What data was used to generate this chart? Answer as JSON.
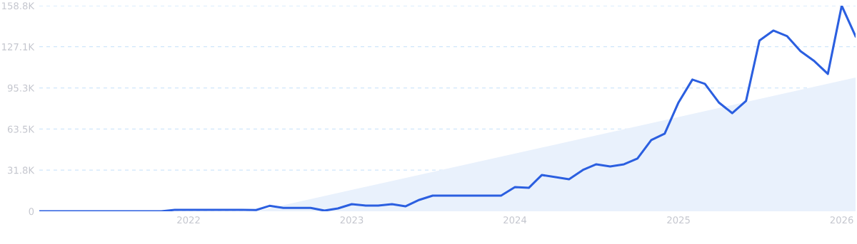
{
  "chart_data": {
    "type": "line",
    "x": [
      "2021-02",
      "2021-03",
      "2021-04",
      "2021-05",
      "2021-06",
      "2021-07",
      "2021-08",
      "2021-09",
      "2021-10",
      "2021-11",
      "2021-12",
      "2022-01",
      "2022-02",
      "2022-03",
      "2022-04",
      "2022-05",
      "2022-06",
      "2022-07",
      "2022-08",
      "2022-09",
      "2022-10",
      "2022-11",
      "2022-12",
      "2023-01",
      "2023-02",
      "2023-03",
      "2023-04",
      "2023-05",
      "2023-06",
      "2023-07",
      "2023-08",
      "2023-09",
      "2023-10",
      "2023-11",
      "2023-12",
      "2024-01",
      "2024-02",
      "2024-03",
      "2024-04",
      "2024-05",
      "2024-06",
      "2024-07",
      "2024-08",
      "2024-09",
      "2024-10",
      "2024-11",
      "2024-12",
      "2025-01",
      "2025-02",
      "2025-03",
      "2025-04",
      "2025-05",
      "2025-06",
      "2025-07",
      "2025-08",
      "2025-09",
      "2025-10",
      "2025-11",
      "2025-12",
      "2026-01",
      "2026-02"
    ],
    "series": [
      {
        "type": "area",
        "color": "#e9f1fc",
        "x": [
          "2022-06",
          "2026-02"
        ],
        "values": [
          0,
          103300
        ]
      },
      {
        "color": "#2b5fe0",
        "values": [
          0,
          0,
          0,
          0,
          0,
          0,
          0,
          0,
          0,
          0,
          1100,
          1100,
          1100,
          1100,
          1100,
          1100,
          1000,
          4200,
          2600,
          2600,
          2600,
          500,
          2200,
          5500,
          4400,
          4400,
          5500,
          3800,
          8800,
          12100,
          12100,
          12100,
          12100,
          12100,
          12100,
          18700,
          18100,
          28000,
          26400,
          24700,
          31900,
          36300,
          34600,
          36300,
          40700,
          55000,
          59900,
          84100,
          101700,
          98400,
          84100,
          75800,
          85200,
          131900,
          139600,
          135200,
          123600,
          115900,
          106100,
          158800,
          135200
        ]
      }
    ],
    "xlim": [
      "2021-02",
      "2026-02"
    ],
    "xticks": [
      "2022",
      "2023",
      "2024",
      "2025",
      "2026"
    ],
    "ylim": [
      0,
      158800
    ],
    "yticks": [
      0,
      {
        "value": 31800,
        "label": "31.8K"
      },
      {
        "value": 63500,
        "label": "63.5K"
      },
      {
        "value": 95300,
        "label": "95.3K"
      },
      {
        "value": 127100,
        "label": "127.1K"
      },
      {
        "value": 158800,
        "label": "158.8K"
      }
    ],
    "grid": "y"
  }
}
